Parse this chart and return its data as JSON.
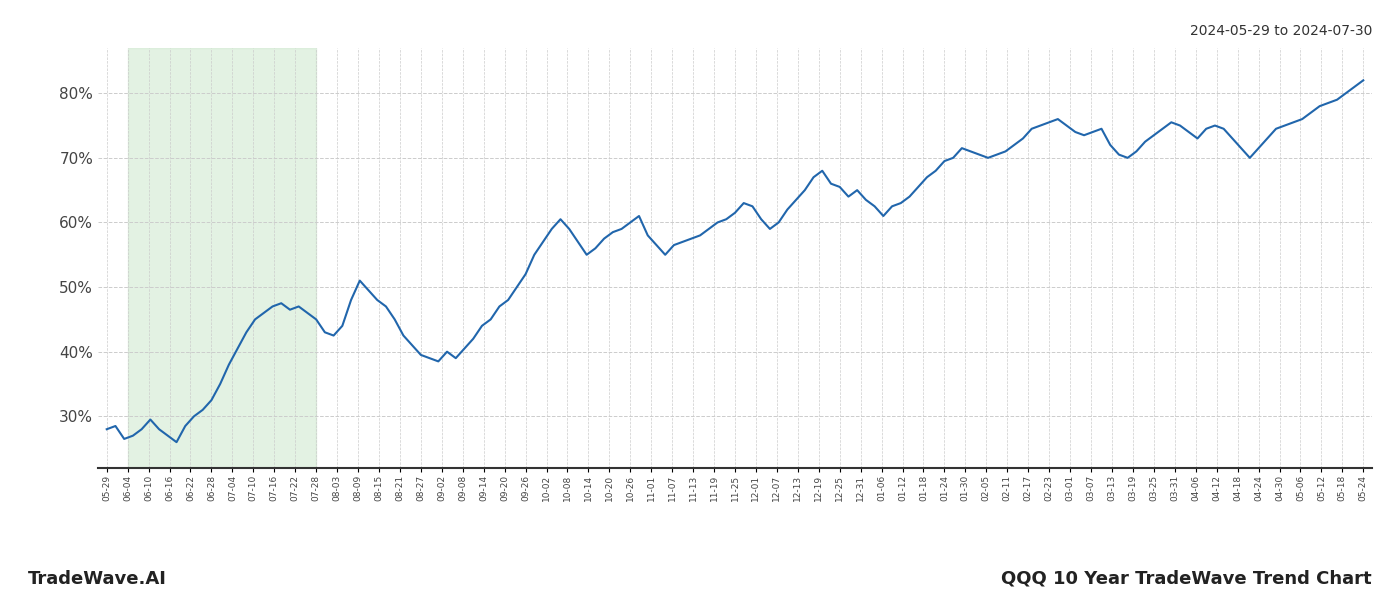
{
  "title_top_right": "2024-05-29 to 2024-07-30",
  "title_bottom_right": "QQQ 10 Year TradeWave Trend Chart",
  "title_bottom_left": "TradeWave.AI",
  "line_color": "#2166ac",
  "line_width": 1.5,
  "shade_color": "#c8e6c9",
  "shade_alpha": 0.5,
  "background_color": "#ffffff",
  "grid_color": "#cccccc",
  "grid_style": "--",
  "ylim": [
    22,
    87
  ],
  "yticks": [
    30,
    40,
    50,
    60,
    70,
    80
  ],
  "shade_start_label": "06-04",
  "shade_end_label": "07-28",
  "x_labels": [
    "05-29",
    "06-04",
    "06-10",
    "06-16",
    "06-22",
    "06-28",
    "07-04",
    "07-10",
    "07-16",
    "07-22",
    "07-28",
    "08-03",
    "08-09",
    "08-15",
    "08-21",
    "08-27",
    "09-02",
    "09-08",
    "09-14",
    "09-20",
    "09-26",
    "10-02",
    "10-08",
    "10-14",
    "10-20",
    "10-26",
    "11-01",
    "11-07",
    "11-13",
    "11-19",
    "11-25",
    "12-01",
    "12-07",
    "12-13",
    "12-19",
    "12-25",
    "12-31",
    "01-06",
    "01-12",
    "01-18",
    "01-24",
    "01-30",
    "02-05",
    "02-11",
    "02-17",
    "02-23",
    "03-01",
    "03-07",
    "03-13",
    "03-19",
    "03-25",
    "03-31",
    "04-06",
    "04-12",
    "04-18",
    "04-24",
    "04-30",
    "05-06",
    "05-12",
    "05-18",
    "05-24"
  ],
  "y_values": [
    28.0,
    28.5,
    26.5,
    27.0,
    28.0,
    29.5,
    28.0,
    27.0,
    26.0,
    28.5,
    30.0,
    31.0,
    32.5,
    35.0,
    38.0,
    40.5,
    43.0,
    45.0,
    46.0,
    47.0,
    47.5,
    46.5,
    47.0,
    46.0,
    45.0,
    43.0,
    42.5,
    44.0,
    48.0,
    51.0,
    49.5,
    48.0,
    47.0,
    45.0,
    42.5,
    41.0,
    39.5,
    39.0,
    38.5,
    40.0,
    39.0,
    40.5,
    42.0,
    44.0,
    45.0,
    47.0,
    48.0,
    50.0,
    52.0,
    55.0,
    57.0,
    59.0,
    60.5,
    59.0,
    57.0,
    55.0,
    56.0,
    57.5,
    58.5,
    59.0,
    60.0,
    61.0,
    58.0,
    56.5,
    55.0,
    56.5,
    57.0,
    57.5,
    58.0,
    59.0,
    60.0,
    60.5,
    61.5,
    63.0,
    62.5,
    60.5,
    59.0,
    60.0,
    62.0,
    63.5,
    65.0,
    67.0,
    68.0,
    66.0,
    65.5,
    64.0,
    65.0,
    63.5,
    62.5,
    61.0,
    62.5,
    63.0,
    64.0,
    65.5,
    67.0,
    68.0,
    69.5,
    70.0,
    71.5,
    71.0,
    70.5,
    70.0,
    70.5,
    71.0,
    72.0,
    73.0,
    74.5,
    75.0,
    75.5,
    76.0,
    75.0,
    74.0,
    73.5,
    74.0,
    74.5,
    72.0,
    70.5,
    70.0,
    71.0,
    72.5,
    73.5,
    74.5,
    75.5,
    75.0,
    74.0,
    73.0,
    74.5,
    75.0,
    74.5,
    73.0,
    71.5,
    70.0,
    71.5,
    73.0,
    74.5,
    75.0,
    75.5,
    76.0,
    77.0,
    78.0,
    78.5,
    79.0,
    80.0,
    81.0,
    82.0
  ]
}
